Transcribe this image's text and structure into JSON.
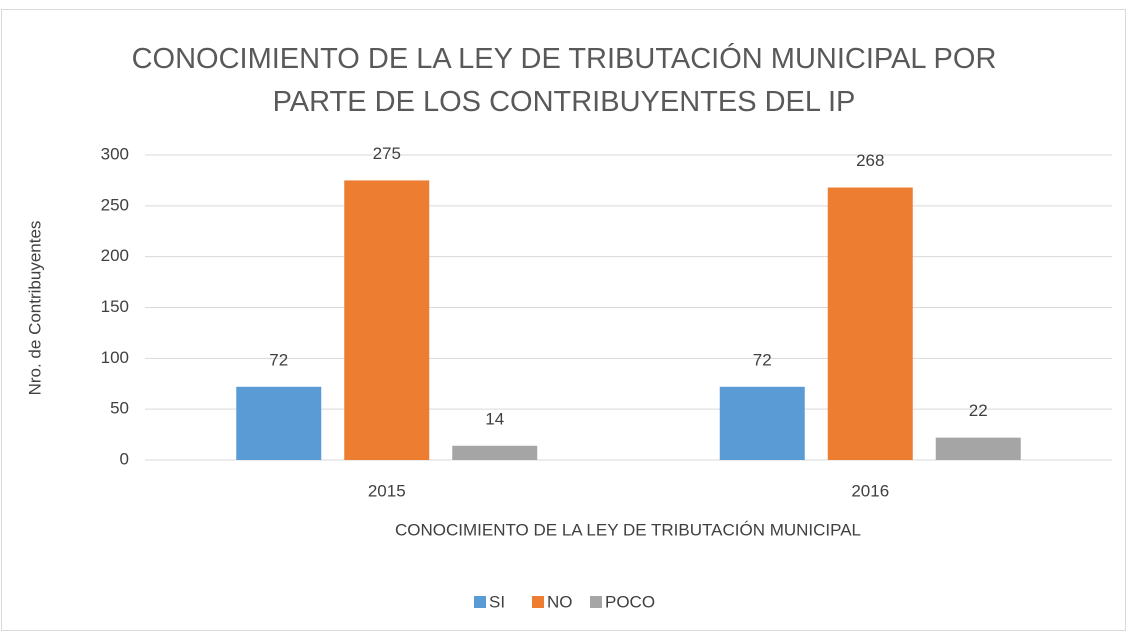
{
  "chart_data": {
    "type": "bar",
    "title": "CONOCIMIENTO DE LA LEY DE TRIBUTACIÓN MUNICIPAL POR PARTE DE LOS CONTRIBUYENTES DEL IP",
    "x_label": "CONOCIMIENTO DE LA LEY DE TRIBUTACIÓN MUNICIPAL",
    "y_label": "Nro. de Contribuyentes",
    "categories": [
      "2015",
      "2016"
    ],
    "series": [
      {
        "name": "SI",
        "color": "#5b9bd5",
        "values": [
          72,
          72
        ]
      },
      {
        "name": "NO",
        "color": "#ed7d31",
        "values": [
          275,
          268
        ]
      },
      {
        "name": "POCO",
        "color": "#a5a5a5",
        "values": [
          14,
          22
        ]
      }
    ],
    "ylim": [
      0,
      300
    ],
    "yticks": [
      0,
      50,
      100,
      150,
      200,
      250,
      300
    ],
    "grid": true,
    "legend": "bottom"
  }
}
